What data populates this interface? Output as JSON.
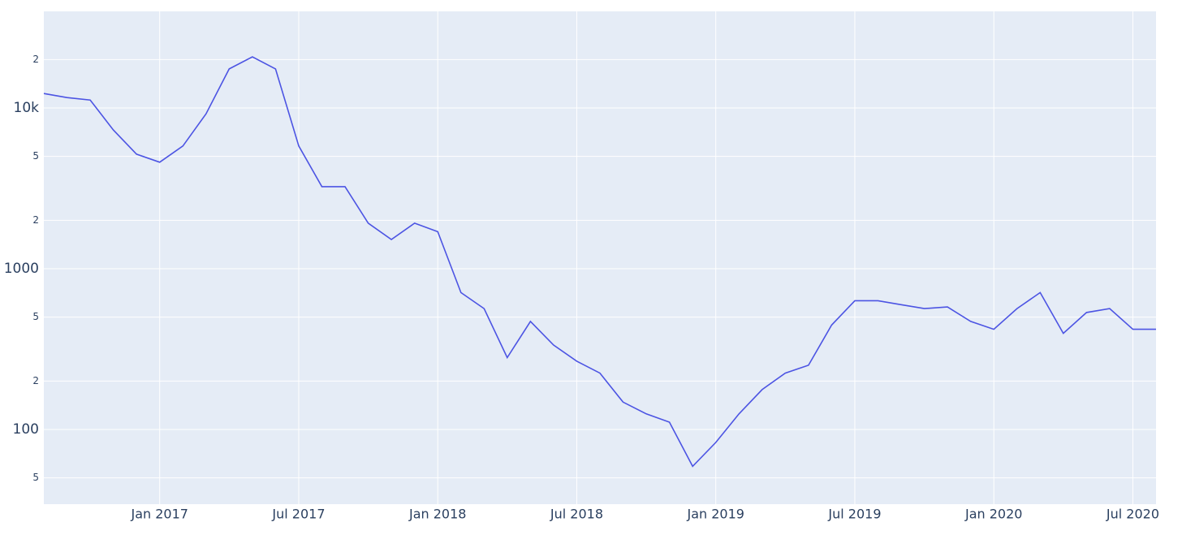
{
  "chart_data": {
    "type": "line",
    "log_y": true,
    "grid": true,
    "color": "#4c54e3",
    "x": [
      "2016-08",
      "2016-09",
      "2016-10",
      "2016-11",
      "2016-12",
      "2017-01",
      "2017-02",
      "2017-03",
      "2017-04",
      "2017-05",
      "2017-06",
      "2017-07",
      "2017-08",
      "2017-09",
      "2017-10",
      "2017-11",
      "2017-12",
      "2018-01",
      "2018-02",
      "2018-03",
      "2018-04",
      "2018-05",
      "2018-06",
      "2018-07",
      "2018-08",
      "2018-09",
      "2018-10",
      "2018-11",
      "2018-12",
      "2019-01",
      "2019-02",
      "2019-03",
      "2019-04",
      "2019-05",
      "2019-06",
      "2019-07",
      "2019-08",
      "2019-09",
      "2019-10",
      "2019-11",
      "2019-12",
      "2020-01",
      "2020-02",
      "2020-03",
      "2020-04",
      "2020-05",
      "2020-06",
      "2020-07",
      "2020-08"
    ],
    "values": [
      12300,
      11600,
      11200,
      7300,
      5160,
      4600,
      5800,
      9200,
      17500,
      20800,
      17500,
      5800,
      3240,
      3240,
      1920,
      1520,
      1920,
      1700,
      710,
      565,
      280,
      470,
      335,
      266,
      224,
      148,
      125,
      111,
      59,
      83,
      125,
      177,
      224,
      251,
      446,
      632,
      632,
      597,
      565,
      578,
      470,
      420,
      565,
      710,
      396,
      534,
      565,
      420,
      420
    ],
    "xlim": [
      "2016-08",
      "2020-08"
    ],
    "xticks": [
      {
        "value": "2017-01",
        "label": "Jan 2017"
      },
      {
        "value": "2017-07",
        "label": "Jul 2017"
      },
      {
        "value": "2018-01",
        "label": "Jan 2018"
      },
      {
        "value": "2018-07",
        "label": "Jul 2018"
      },
      {
        "value": "2019-01",
        "label": "Jan 2019"
      },
      {
        "value": "2019-07",
        "label": "Jul 2019"
      },
      {
        "value": "2020-01",
        "label": "Jan 2020"
      },
      {
        "value": "2020-07",
        "label": "Jul 2020"
      }
    ],
    "ylim": [
      34.3,
      39900
    ],
    "yticks": [
      {
        "value": 50,
        "label": "5"
      },
      100,
      {
        "value": 200,
        "label": "2"
      },
      {
        "value": 500,
        "label": "5"
      },
      1000,
      {
        "value": 2000,
        "label": "2"
      },
      {
        "value": 5000,
        "label": "5"
      },
      {
        "value": 10000,
        "label": "10k"
      },
      {
        "value": 20000,
        "label": "2"
      }
    ]
  }
}
